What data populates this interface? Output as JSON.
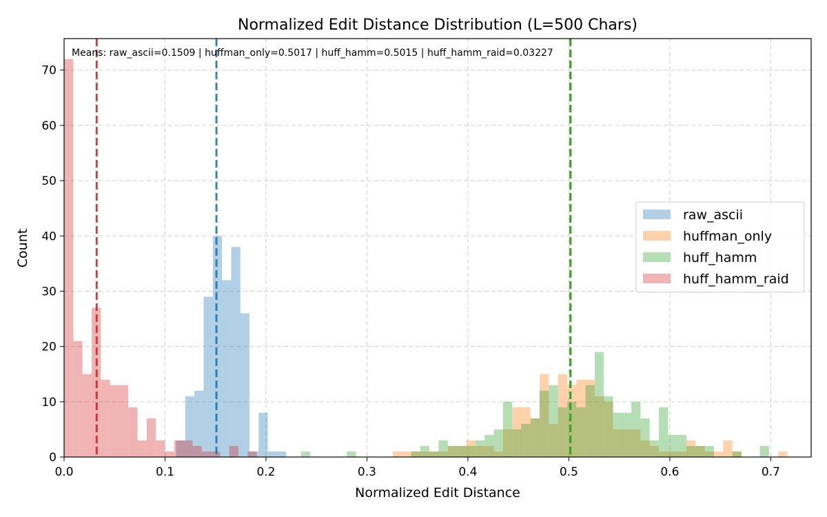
{
  "chart_data": {
    "type": "histogram",
    "title": "Normalized Edit Distance Distribution (L=500 Chars)",
    "xlabel": "Normalized Edit Distance",
    "ylabel": "Count",
    "xlim": [
      0,
      0.74
    ],
    "ylim": [
      0,
      75.7
    ],
    "xticks": [
      "0.0",
      "0.1",
      "0.2",
      "0.3",
      "0.4",
      "0.5",
      "0.6",
      "0.7"
    ],
    "yticks": [
      "0",
      "10",
      "20",
      "30",
      "40",
      "50",
      "60",
      "70"
    ],
    "grid": true,
    "legend_position": "center-right",
    "annotation": "Means: raw_ascii=0.1509 | huffman_only=0.5017 | huff_hamm=0.5015 | huff_hamm_raid=0.03227",
    "series": [
      {
        "name": "raw_ascii",
        "color": "#1f77b4",
        "bin_width": 0.00909,
        "bins": [
          [
            0.1109,
            3
          ],
          [
            0.12,
            11
          ],
          [
            0.1291,
            12
          ],
          [
            0.1382,
            29
          ],
          [
            0.1473,
            40
          ],
          [
            0.1564,
            32
          ],
          [
            0.1655,
            38
          ],
          [
            0.1745,
            26
          ],
          [
            0.1836,
            1
          ],
          [
            0.1927,
            8
          ],
          [
            0.2018,
            1
          ],
          [
            0.2109,
            1
          ]
        ],
        "mean": 0.1509
      },
      {
        "name": "huffman_only",
        "color": "#ff7f0e",
        "bin_width": 0.00909,
        "bins": [
          [
            0.3256,
            1
          ],
          [
            0.3347,
            1
          ],
          [
            0.3438,
            1
          ],
          [
            0.3528,
            1
          ],
          [
            0.3619,
            1
          ],
          [
            0.371,
            1
          ],
          [
            0.3801,
            2
          ],
          [
            0.3892,
            2
          ],
          [
            0.3983,
            3
          ],
          [
            0.4074,
            2
          ],
          [
            0.4165,
            2
          ],
          [
            0.4256,
            1
          ],
          [
            0.4347,
            5
          ],
          [
            0.4438,
            9
          ],
          [
            0.4528,
            9
          ],
          [
            0.4619,
            7
          ],
          [
            0.471,
            15
          ],
          [
            0.4801,
            6
          ],
          [
            0.4892,
            15
          ],
          [
            0.4983,
            13
          ],
          [
            0.5074,
            14
          ],
          [
            0.5165,
            14
          ],
          [
            0.5256,
            11
          ],
          [
            0.5347,
            10
          ],
          [
            0.5438,
            5
          ],
          [
            0.5528,
            5
          ],
          [
            0.5619,
            5
          ],
          [
            0.571,
            3
          ],
          [
            0.5801,
            2
          ],
          [
            0.5892,
            1
          ],
          [
            0.5983,
            1
          ],
          [
            0.6074,
            1
          ],
          [
            0.6165,
            3
          ],
          [
            0.6256,
            2
          ],
          [
            0.6347,
            1
          ],
          [
            0.6438,
            1
          ],
          [
            0.6528,
            3
          ],
          [
            0.6619,
            1
          ],
          [
            0.7074,
            1
          ]
        ],
        "mean": 0.5017
      },
      {
        "name": "huff_hamm",
        "color": "#2ca02c",
        "bin_width": 0.00909,
        "bins": [
          [
            0.2347,
            1
          ],
          [
            0.2801,
            1
          ],
          [
            0.3438,
            1
          ],
          [
            0.3528,
            2
          ],
          [
            0.3619,
            1
          ],
          [
            0.371,
            3
          ],
          [
            0.3801,
            2
          ],
          [
            0.3892,
            2
          ],
          [
            0.3983,
            2
          ],
          [
            0.4074,
            3
          ],
          [
            0.4165,
            4
          ],
          [
            0.4256,
            5
          ],
          [
            0.4347,
            10
          ],
          [
            0.4438,
            5
          ],
          [
            0.4528,
            6
          ],
          [
            0.4619,
            7
          ],
          [
            0.471,
            12
          ],
          [
            0.4801,
            13
          ],
          [
            0.4892,
            9
          ],
          [
            0.4983,
            10
          ],
          [
            0.5074,
            9
          ],
          [
            0.5165,
            13
          ],
          [
            0.5256,
            19
          ],
          [
            0.5347,
            11
          ],
          [
            0.5438,
            8
          ],
          [
            0.5528,
            8
          ],
          [
            0.5619,
            10
          ],
          [
            0.571,
            7
          ],
          [
            0.5801,
            3
          ],
          [
            0.5892,
            9
          ],
          [
            0.5983,
            4
          ],
          [
            0.6074,
            4
          ],
          [
            0.6165,
            2
          ],
          [
            0.6256,
            2
          ],
          [
            0.6347,
            2
          ],
          [
            0.6619,
            1
          ],
          [
            0.6892,
            2
          ]
        ],
        "mean": 0.5015
      },
      {
        "name": "huff_hamm_raid",
        "color": "#d62728",
        "bin_width": 0.00909,
        "bins": [
          [
            0.0,
            72
          ],
          [
            0.0091,
            21
          ],
          [
            0.0182,
            15
          ],
          [
            0.0273,
            27
          ],
          [
            0.0364,
            14
          ],
          [
            0.0455,
            13
          ],
          [
            0.0545,
            13
          ],
          [
            0.0636,
            9
          ],
          [
            0.0727,
            3
          ],
          [
            0.0818,
            7
          ],
          [
            0.0909,
            3
          ],
          [
            0.1,
            1
          ],
          [
            0.1091,
            3
          ],
          [
            0.1182,
            3
          ],
          [
            0.1273,
            2
          ],
          [
            0.1364,
            1
          ],
          [
            0.1455,
            1
          ],
          [
            0.1636,
            2
          ],
          [
            0.1818,
            1
          ]
        ],
        "mean": 0.03227
      }
    ]
  }
}
